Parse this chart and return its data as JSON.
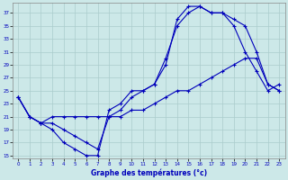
{
  "xlabel": "Graphe des températures (°c)",
  "bg_color": "#cce8e8",
  "line_color": "#0000bb",
  "grid_color": "#aacccc",
  "xmin": -0.5,
  "xmax": 23.5,
  "ymin": 14.5,
  "ymax": 38.5,
  "xticks": [
    0,
    1,
    2,
    3,
    4,
    5,
    6,
    7,
    8,
    9,
    10,
    11,
    12,
    13,
    14,
    15,
    16,
    17,
    18,
    19,
    20,
    21,
    22,
    23
  ],
  "yticks": [
    15,
    17,
    19,
    21,
    23,
    25,
    27,
    29,
    31,
    33,
    35,
    37
  ],
  "line1_x": [
    0,
    1,
    2,
    3,
    4,
    5,
    6,
    7,
    8,
    9,
    10,
    11,
    12,
    13,
    14,
    15,
    16,
    17,
    18,
    19,
    20,
    21,
    22,
    23
  ],
  "line1_y": [
    24,
    21,
    20,
    19,
    17,
    16,
    15,
    15,
    22,
    23,
    25,
    25,
    26,
    29,
    36,
    38,
    38,
    37,
    37,
    35,
    31,
    28,
    25,
    26
  ],
  "line2_x": [
    0,
    1,
    2,
    3,
    4,
    5,
    6,
    7,
    8,
    9,
    10,
    11,
    12,
    13,
    14,
    15,
    16,
    17,
    18,
    19,
    20,
    21,
    22,
    23
  ],
  "line2_y": [
    24,
    21,
    20,
    20,
    19,
    18,
    17,
    16,
    21,
    22,
    24,
    25,
    26,
    30,
    35,
    37,
    38,
    37,
    37,
    36,
    35,
    31,
    26,
    25
  ],
  "line3_x": [
    0,
    1,
    2,
    3,
    4,
    5,
    6,
    7,
    8,
    9,
    10,
    11,
    12,
    13,
    14,
    15,
    16,
    17,
    18,
    19,
    20,
    21,
    22,
    23
  ],
  "line3_y": [
    24,
    21,
    20,
    21,
    21,
    21,
    21,
    21,
    21,
    21,
    22,
    22,
    23,
    24,
    25,
    25,
    26,
    27,
    28,
    29,
    30,
    30,
    26,
    25
  ]
}
